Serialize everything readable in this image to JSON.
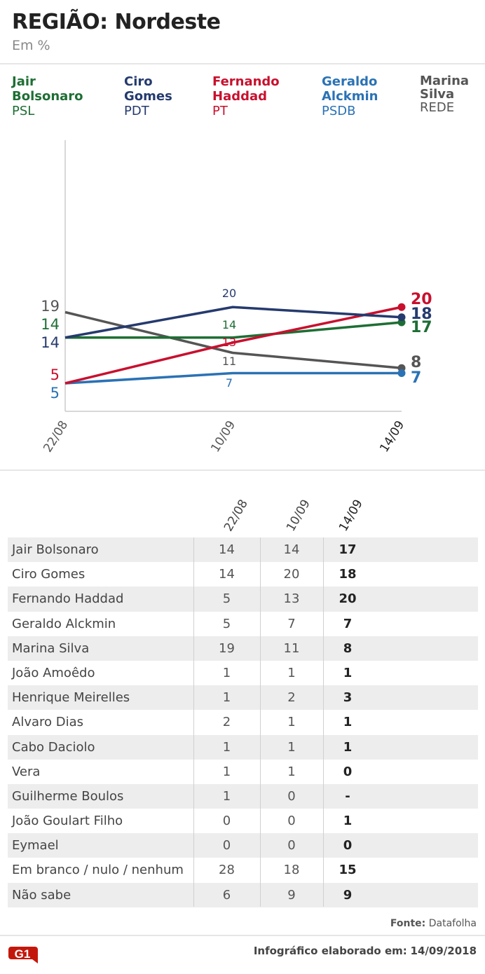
{
  "header": {
    "title": "REGIÃO: Nordeste",
    "subtitle": "Em %"
  },
  "legend": [
    {
      "name": "Jair\nBolsonaro",
      "party": "PSL",
      "color": "#1e6e34"
    },
    {
      "name": "Ciro\nGomes",
      "party": "PDT",
      "color": "#253a6e"
    },
    {
      "name": "Fernando\nHaddad",
      "party": "PT",
      "color": "#c8102e"
    },
    {
      "name": "Geraldo\nAlckmin",
      "party": "PSDB",
      "color": "#2a72b5"
    },
    {
      "name": "Marina\nSilva",
      "party": "REDE",
      "color": "#555555"
    }
  ],
  "chart_data": {
    "type": "line",
    "x": [
      "22/08",
      "10/09",
      "14/09"
    ],
    "series": [
      {
        "name": "Jair Bolsonaro",
        "values": [
          14,
          14,
          17
        ],
        "color": "#1e6e34"
      },
      {
        "name": "Ciro Gomes",
        "values": [
          14,
          20,
          18
        ],
        "color": "#253a6e"
      },
      {
        "name": "Fernando Haddad",
        "values": [
          5,
          13,
          20
        ],
        "color": "#c8102e"
      },
      {
        "name": "Geraldo Alckmin",
        "values": [
          5,
          7,
          7
        ],
        "color": "#2a72b5"
      },
      {
        "name": "Marina Silva",
        "values": [
          19,
          11,
          8
        ],
        "color": "#555555"
      }
    ],
    "grid": false
  },
  "table": {
    "columns": [
      "22/08",
      "10/09",
      "14/09"
    ],
    "rows": [
      {
        "candidate": "Jair Bolsonaro",
        "v1": "14",
        "v2": "14",
        "v3": "17"
      },
      {
        "candidate": "Ciro Gomes",
        "v1": "14",
        "v2": "20",
        "v3": "18"
      },
      {
        "candidate": "Fernando Haddad",
        "v1": "5",
        "v2": "13",
        "v3": "20"
      },
      {
        "candidate": "Geraldo Alckmin",
        "v1": "5",
        "v2": "7",
        "v3": "7"
      },
      {
        "candidate": "Marina Silva",
        "v1": "19",
        "v2": "11",
        "v3": "8"
      },
      {
        "candidate": "João Amoêdo",
        "v1": "1",
        "v2": "1",
        "v3": "1"
      },
      {
        "candidate": "Henrique Meirelles",
        "v1": "1",
        "v2": "2",
        "v3": "3"
      },
      {
        "candidate": "Alvaro Dias",
        "v1": "2",
        "v2": "1",
        "v3": "1"
      },
      {
        "candidate": "Cabo Daciolo",
        "v1": "1",
        "v2": "1",
        "v3": "1"
      },
      {
        "candidate": "Vera",
        "v1": "1",
        "v2": "1",
        "v3": "0"
      },
      {
        "candidate": "Guilherme Boulos",
        "v1": "1",
        "v2": "0",
        "v3": "-"
      },
      {
        "candidate": "João Goulart Filho",
        "v1": "0",
        "v2": "0",
        "v3": "1"
      },
      {
        "candidate": "Eymael",
        "v1": "0",
        "v2": "0",
        "v3": "0"
      },
      {
        "candidate": "Em branco / nulo / nenhum",
        "v1": "28",
        "v2": "18",
        "v3": "15"
      },
      {
        "candidate": "Não sabe",
        "v1": "6",
        "v2": "9",
        "v3": "9"
      }
    ]
  },
  "source": {
    "label": "Fonte:",
    "value": "Datafolha"
  },
  "footer": {
    "label": "Infográfico elaborado em:",
    "date": "14/09/2018"
  },
  "logo": {
    "text": "G1",
    "color": "#c4170c"
  }
}
